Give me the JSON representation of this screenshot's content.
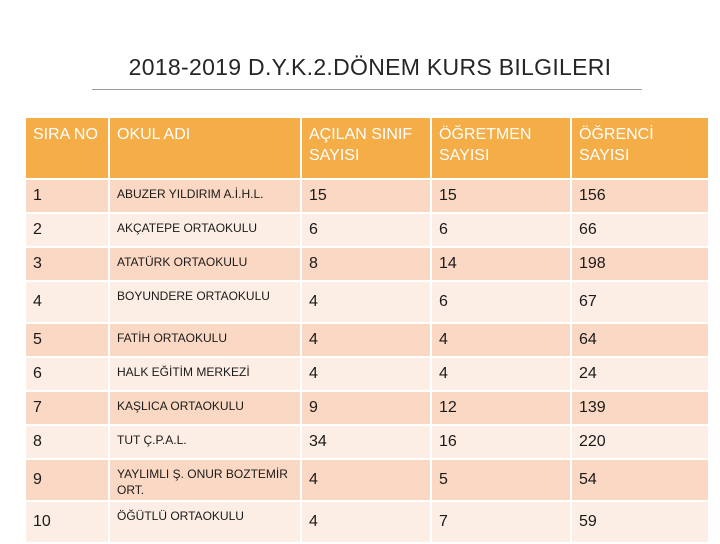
{
  "title": "2018-2019 D.Y.K.2.DÖNEM KURS BILGILERI",
  "table": {
    "headers": {
      "sira": "SIRA NO",
      "okul": "OKUL ADI",
      "sinif": "AÇILAN SINIF SAYISI",
      "ogretmen": "ÖĞRETMEN SAYISI",
      "ogrenci": "ÖĞRENCİ SAYISI"
    },
    "rows": [
      {
        "sira": "1",
        "okul": "ABUZER YILDIRIM A.İ.H.L.",
        "sinif": "15",
        "ogretmen": "15",
        "ogrenci": "156"
      },
      {
        "sira": "2",
        "okul": "AKÇATEPE ORTAOKULU",
        "sinif": "6",
        "ogretmen": "6",
        "ogrenci": "66"
      },
      {
        "sira": "3",
        "okul": "ATATÜRK ORTAOKULU",
        "sinif": "8",
        "ogretmen": "14",
        "ogrenci": "198"
      },
      {
        "sira": "4",
        "okul": "BOYUNDERE ORTAOKULU",
        "sinif": "4",
        "ogretmen": "6",
        "ogrenci": "67"
      },
      {
        "sira": "5",
        "okul": "FATİH ORTAOKULU",
        "sinif": "4",
        "ogretmen": "4",
        "ogrenci": "64"
      },
      {
        "sira": "6",
        "okul": "HALK EĞİTİM MERKEZİ",
        "sinif": "4",
        "ogretmen": "4",
        "ogrenci": "24"
      },
      {
        "sira": "7",
        "okul": "KAŞLICA ORTAOKULU",
        "sinif": "9",
        "ogretmen": "12",
        "ogrenci": "139"
      },
      {
        "sira": "8",
        "okul": "TUT Ç.P.A.L.",
        "sinif": "34",
        "ogretmen": "16",
        "ogrenci": "220"
      },
      {
        "sira": "9",
        "okul": "YAYLIMLI Ş. ONUR BOZTEMİR ORT.",
        "sinif": "4",
        "ogretmen": "5",
        "ogrenci": "54"
      },
      {
        "sira": "10",
        "okul": "ÖĞÜTLÜ ORTAOKULU",
        "sinif": "4",
        "ogretmen": "7",
        "ogrenci": "59"
      }
    ]
  }
}
